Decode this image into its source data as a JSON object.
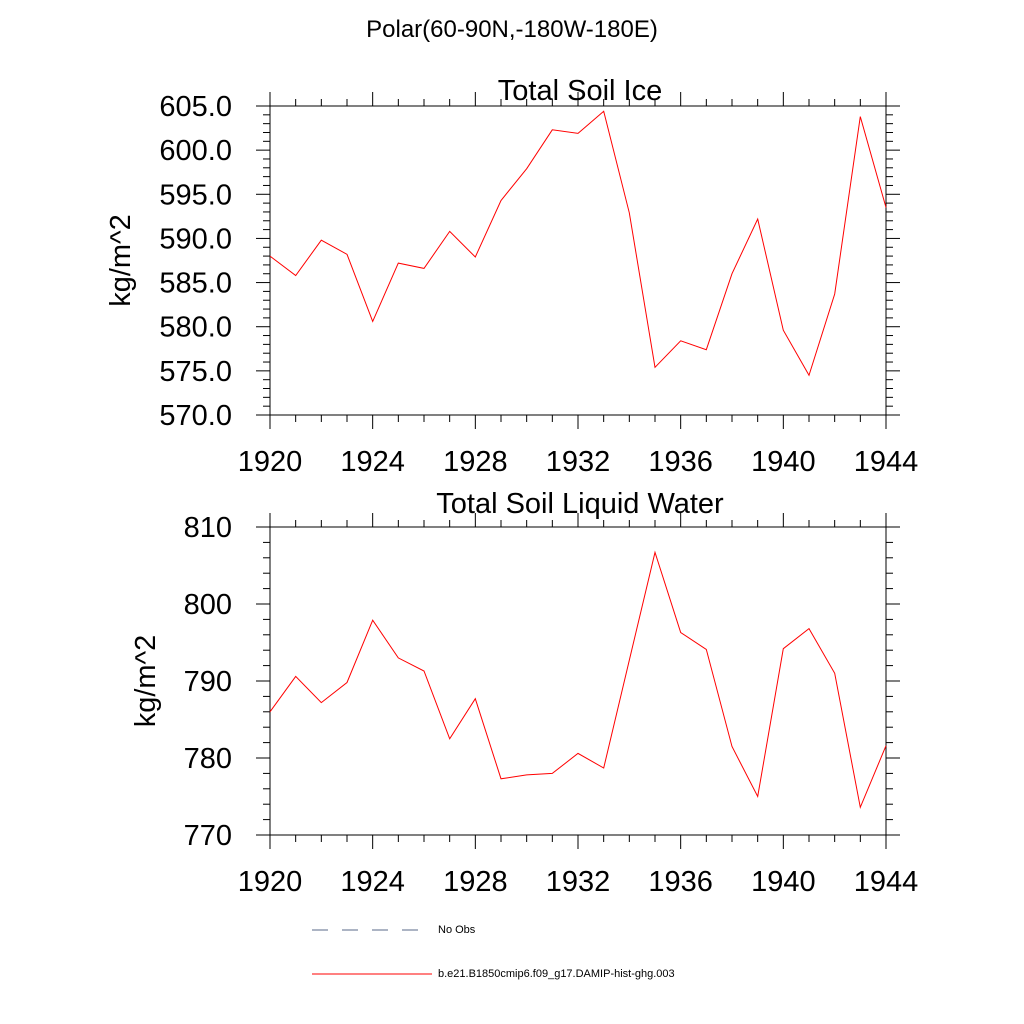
{
  "supertitle": "Polar(60-90N,-180W-180E)",
  "chart_data": [
    {
      "type": "line",
      "title": "Total Soil Ice",
      "ylabel": "kg/m^2",
      "xlim": [
        1920,
        1944
      ],
      "ylim": [
        570,
        605
      ],
      "x_ticks": [
        "1920",
        "1924",
        "1928",
        "1932",
        "1936",
        "1940",
        "1944"
      ],
      "y_ticks": [
        "570.0",
        "575.0",
        "580.0",
        "585.0",
        "590.0",
        "595.0",
        "600.0",
        "605.0"
      ],
      "series": [
        {
          "name": "b.e21.B1850cmip6.f09_g17.DAMIP-hist-ghg.003",
          "color": "#ff0000",
          "x": [
            1920,
            1921,
            1922,
            1923,
            1924,
            1925,
            1926,
            1927,
            1928,
            1929,
            1930,
            1931,
            1932,
            1933,
            1934,
            1935,
            1936,
            1937,
            1938,
            1939,
            1940,
            1941,
            1942,
            1943,
            1944
          ],
          "values": [
            588.0,
            585.8,
            589.8,
            588.2,
            580.6,
            587.2,
            586.6,
            590.8,
            587.9,
            594.3,
            597.9,
            602.3,
            601.9,
            604.4,
            592.9,
            575.4,
            578.4,
            577.4,
            586.0,
            592.2,
            579.6,
            574.5,
            583.7,
            603.8,
            593.5
          ]
        }
      ]
    },
    {
      "type": "line",
      "title": "Total Soil Liquid Water",
      "ylabel": "kg/m^2",
      "xlim": [
        1920,
        1944
      ],
      "ylim": [
        770,
        810
      ],
      "x_ticks": [
        "1920",
        "1924",
        "1928",
        "1932",
        "1936",
        "1940",
        "1944"
      ],
      "y_ticks": [
        "770",
        "780",
        "790",
        "800",
        "810"
      ],
      "series": [
        {
          "name": "b.e21.B1850cmip6.f09_g17.DAMIP-hist-ghg.003",
          "color": "#ff0000",
          "x": [
            1920,
            1921,
            1922,
            1923,
            1924,
            1925,
            1926,
            1927,
            1928,
            1929,
            1930,
            1931,
            1932,
            1933,
            1934,
            1935,
            1936,
            1937,
            1938,
            1939,
            1940,
            1941,
            1942,
            1943,
            1944
          ],
          "values": [
            786.0,
            790.6,
            787.2,
            789.8,
            797.9,
            793.0,
            791.3,
            782.5,
            787.7,
            777.3,
            777.8,
            778.0,
            780.6,
            778.7,
            792.7,
            806.7,
            796.3,
            794.1,
            781.5,
            775.0,
            794.2,
            796.8,
            791.0,
            773.6,
            781.6
          ]
        }
      ]
    }
  ],
  "legend": {
    "items": [
      {
        "label": "No Obs",
        "color": "#5a6a8a",
        "style": "dashed"
      },
      {
        "label": "b.e21.B1850cmip6.f09_g17.DAMIP-hist-ghg.003",
        "color": "#ff0000",
        "style": "solid"
      }
    ]
  }
}
